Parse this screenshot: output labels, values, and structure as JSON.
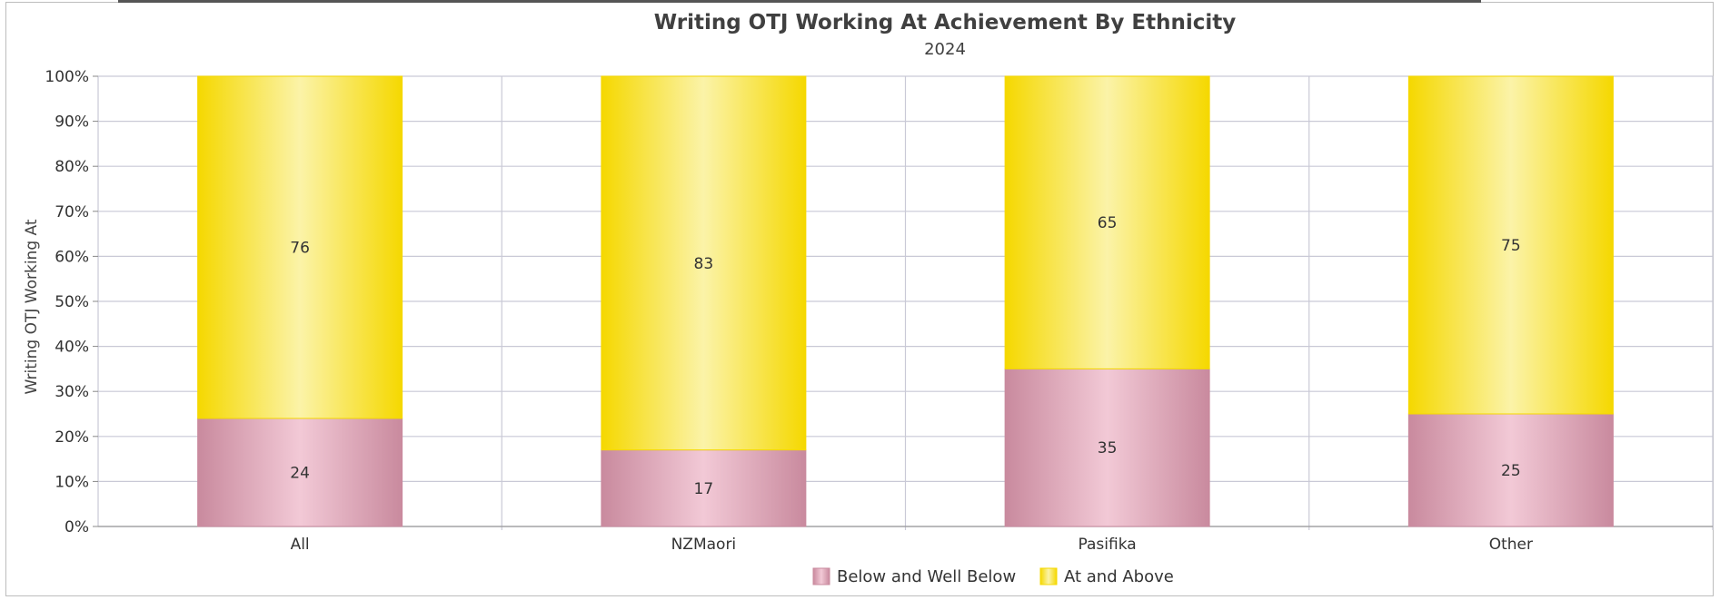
{
  "chart_data": {
    "type": "bar",
    "stacked": true,
    "title": "Writing OTJ Working At Achievement By Ethnicity",
    "subtitle": "2024",
    "xlabel": "",
    "ylabel": "Writing OTJ Working At",
    "categories": [
      "All",
      "NZMaori",
      "Pasifika",
      "Other"
    ],
    "series": [
      {
        "name": "Below and Well Below",
        "values": [
          24,
          17,
          35,
          25
        ],
        "color": "#c98a9e",
        "highlight": "#f2c9d6"
      },
      {
        "name": "At and Above",
        "values": [
          76,
          83,
          65,
          75
        ],
        "color": "#f5d800",
        "highlight": "#fbf3a8"
      }
    ],
    "ylim": [
      0,
      100
    ],
    "yticks": [
      "0%",
      "10%",
      "20%",
      "30%",
      "40%",
      "50%",
      "60%",
      "70%",
      "80%",
      "90%",
      "100%"
    ],
    "grid": true,
    "legend_position": "bottom"
  }
}
